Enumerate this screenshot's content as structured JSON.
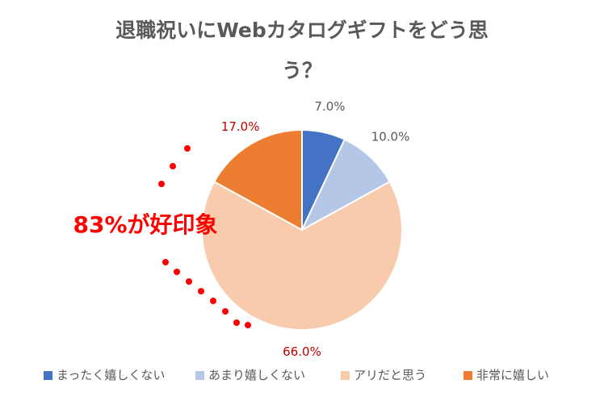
{
  "chart_data": {
    "type": "pie",
    "title_lines": [
      "退職祝いにWebカタログギフトをどう思",
      "う？"
    ],
    "categories": [
      "まったく嬉しくない",
      "あまり嬉しくない",
      "アリだと思う",
      "非常に嬉しい"
    ],
    "values": [
      7.0,
      10.0,
      66.0,
      17.0
    ],
    "value_labels": [
      "7.0%",
      "10.0%",
      "66.0%",
      "17.0%"
    ],
    "colors": [
      "#4472C4",
      "#B4C7E7",
      "#F8CBAD",
      "#ED7D31"
    ],
    "start_angle_deg": 0,
    "direction": "clockwise",
    "legend_position": "bottom",
    "callout": {
      "text": "83%が好印象",
      "color": "#FF0000"
    },
    "label_colors": [
      "#595959",
      "#595959",
      "#C00000",
      "#C00000"
    ]
  }
}
